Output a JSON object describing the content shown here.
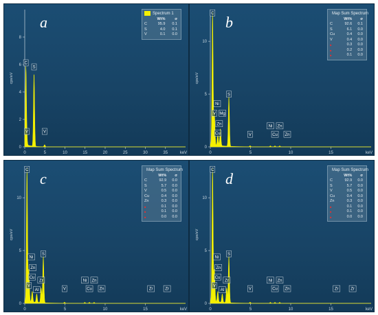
{
  "chart_data": [
    {
      "type": "line",
      "panel_label": "a",
      "legend_title": "Spectrum 1",
      "columns": [
        "Wt%",
        "σ"
      ],
      "rows": [
        {
          "el": "C",
          "wt": "95.9",
          "sigma": "0.1",
          "red": false
        },
        {
          "el": "S",
          "wt": "4.0",
          "sigma": "0.1",
          "red": false
        },
        {
          "el": "V",
          "wt": "0.1",
          "sigma": "0.0",
          "red": false
        }
      ],
      "ylabel": "cps/eV",
      "xlabel": "keV",
      "xlim": [
        0,
        40
      ],
      "ylim": [
        0,
        10
      ],
      "x_ticks": [
        0,
        5,
        10,
        15,
        20,
        25,
        30,
        35
      ],
      "y_ticks": [
        0,
        2,
        4,
        6,
        8
      ],
      "peaks": [
        {
          "x": 0.28,
          "y": 5.6
        },
        {
          "x": 0.51,
          "y": 0.35
        },
        {
          "x": 2.31,
          "y": 5.3
        },
        {
          "x": 4.95,
          "y": 0.15
        }
      ],
      "markers": [
        {
          "label": "C",
          "x": 0.28,
          "y": 5.9
        },
        {
          "label": "S",
          "x": 2.31,
          "y": 5.6
        },
        {
          "label": "V",
          "x": 0.51,
          "y": 0.9
        },
        {
          "label": "V",
          "x": 4.95,
          "y": 0.9
        }
      ]
    },
    {
      "type": "line",
      "panel_label": "b",
      "legend_title": "Map Sum Spectrum",
      "columns": [
        "Wt%",
        "σ"
      ],
      "rows": [
        {
          "el": "C",
          "wt": "92.6",
          "sigma": "0.1",
          "red": false
        },
        {
          "el": "S",
          "wt": "6.1",
          "sigma": "0.0",
          "red": false
        },
        {
          "el": "Cu",
          "wt": "0.4",
          "sigma": "0.0",
          "red": false
        },
        {
          "el": "V",
          "wt": "0.4",
          "sigma": "0.0",
          "red": false
        },
        {
          "el": "",
          "wt": "0.3",
          "sigma": "0.0",
          "red": true
        },
        {
          "el": "",
          "wt": "0.2",
          "sigma": "0.0",
          "red": true
        },
        {
          "el": "",
          "wt": "0.1",
          "sigma": "0.0",
          "red": true
        }
      ],
      "ylabel": "cps/eV",
      "xlabel": "keV",
      "xlim": [
        0,
        20
      ],
      "ylim": [
        0,
        13
      ],
      "x_ticks": [
        0,
        5,
        10,
        15
      ],
      "y_ticks": [
        0,
        5,
        10
      ],
      "peaks": [
        {
          "x": 0.28,
          "y": 12.6
        },
        {
          "x": 0.51,
          "y": 3.0
        },
        {
          "x": 0.93,
          "y": 1.0
        },
        {
          "x": 1.25,
          "y": 1.6
        },
        {
          "x": 2.31,
          "y": 4.7
        },
        {
          "x": 4.95,
          "y": 0.1
        },
        {
          "x": 7.47,
          "y": 0.1
        },
        {
          "x": 8.04,
          "y": 0.1
        },
        {
          "x": 8.63,
          "y": 0.1
        }
      ],
      "markers": [
        {
          "label": "C",
          "x": 0.28,
          "y": 12.4
        },
        {
          "label": "Ni",
          "x": 0.85,
          "y": 3.8
        },
        {
          "label": "Mg",
          "x": 1.5,
          "y": 2.9
        },
        {
          "label": "Zn",
          "x": 1.1,
          "y": 1.9
        },
        {
          "label": "Cu",
          "x": 0.93,
          "y": 1.0
        },
        {
          "label": "V",
          "x": 0.51,
          "y": 2.9
        },
        {
          "label": "S",
          "x": 2.31,
          "y": 4.7
        },
        {
          "label": "V",
          "x": 4.95,
          "y": 0.9
        },
        {
          "label": "Ni",
          "x": 7.47,
          "y": 1.7
        },
        {
          "label": "Zn",
          "x": 8.63,
          "y": 1.7
        },
        {
          "label": "Cu",
          "x": 8.04,
          "y": 0.9
        },
        {
          "label": "Zn",
          "x": 9.57,
          "y": 0.9
        }
      ]
    },
    {
      "type": "line",
      "panel_label": "c",
      "legend_title": "Map Sum Spectrum",
      "columns": [
        "Wt%",
        "σ"
      ],
      "rows": [
        {
          "el": "C",
          "wt": "92.9",
          "sigma": "0.0",
          "red": false
        },
        {
          "el": "S",
          "wt": "5.7",
          "sigma": "0.0",
          "red": false
        },
        {
          "el": "V",
          "wt": "0.5",
          "sigma": "0.0",
          "red": false
        },
        {
          "el": "Cu",
          "wt": "0.4",
          "sigma": "0.0",
          "red": false
        },
        {
          "el": "Zn",
          "wt": "0.3",
          "sigma": "0.0",
          "red": false
        },
        {
          "el": "",
          "wt": "0.1",
          "sigma": "0.0",
          "red": true
        },
        {
          "el": "",
          "wt": "0.1",
          "sigma": "0.0",
          "red": true
        },
        {
          "el": "",
          "wt": "0.0",
          "sigma": "0.0",
          "red": true
        }
      ],
      "ylabel": "cps/eV",
      "xlabel": "keV",
      "xlim": [
        0,
        20
      ],
      "ylim": [
        0,
        13
      ],
      "x_ticks": [
        0,
        5,
        10,
        15
      ],
      "y_ticks": [
        0,
        5,
        10
      ],
      "peaks": [
        {
          "x": 0.28,
          "y": 12.6
        },
        {
          "x": 0.51,
          "y": 3.0
        },
        {
          "x": 0.93,
          "y": 1.0
        },
        {
          "x": 1.49,
          "y": 0.8
        },
        {
          "x": 2.04,
          "y": 1.4
        },
        {
          "x": 2.31,
          "y": 4.4
        },
        {
          "x": 4.95,
          "y": 0.1
        },
        {
          "x": 7.47,
          "y": 0.1
        },
        {
          "x": 8.04,
          "y": 0.1
        },
        {
          "x": 8.63,
          "y": 0.1
        }
      ],
      "markers": [
        {
          "label": "C",
          "x": 0.28,
          "y": 12.4
        },
        {
          "label": "Ni",
          "x": 0.8,
          "y": 4.1
        },
        {
          "label": "Zn",
          "x": 1.0,
          "y": 3.1
        },
        {
          "label": "Cu",
          "x": 0.9,
          "y": 2.2
        },
        {
          "label": "V",
          "x": 0.51,
          "y": 1.4
        },
        {
          "label": "Al",
          "x": 1.49,
          "y": 1.0
        },
        {
          "label": "Zr",
          "x": 2.04,
          "y": 1.9
        },
        {
          "label": "S",
          "x": 2.31,
          "y": 4.4
        },
        {
          "label": "V",
          "x": 4.95,
          "y": 1.1
        },
        {
          "label": "Ni",
          "x": 7.47,
          "y": 1.9
        },
        {
          "label": "Zn",
          "x": 8.63,
          "y": 1.9
        },
        {
          "label": "Cu",
          "x": 8.04,
          "y": 1.1
        },
        {
          "label": "Zn",
          "x": 9.57,
          "y": 1.1
        },
        {
          "label": "Zr",
          "x": 15.7,
          "y": 1.1
        },
        {
          "label": "Zr",
          "x": 17.7,
          "y": 1.1
        }
      ]
    },
    {
      "type": "line",
      "panel_label": "d",
      "legend_title": "Map Sum Spectrum",
      "columns": [
        "Wt%",
        "σ"
      ],
      "rows": [
        {
          "el": "C",
          "wt": "92.9",
          "sigma": "0.0",
          "red": false
        },
        {
          "el": "S",
          "wt": "5.7",
          "sigma": "0.0",
          "red": false
        },
        {
          "el": "V",
          "wt": "0.5",
          "sigma": "0.0",
          "red": false
        },
        {
          "el": "Cu",
          "wt": "0.4",
          "sigma": "0.0",
          "red": false
        },
        {
          "el": "Zn",
          "wt": "0.3",
          "sigma": "0.0",
          "red": false
        },
        {
          "el": "",
          "wt": "0.1",
          "sigma": "0.0",
          "red": true
        },
        {
          "el": "",
          "wt": "0.1",
          "sigma": "0.0",
          "red": true
        },
        {
          "el": "",
          "wt": "0.0",
          "sigma": "0.0",
          "red": true
        }
      ],
      "ylabel": "cps/eV",
      "xlabel": "keV",
      "xlim": [
        0,
        20
      ],
      "ylim": [
        0,
        13
      ],
      "x_ticks": [
        0,
        5,
        10,
        15
      ],
      "y_ticks": [
        0,
        5,
        10
      ],
      "peaks": [
        {
          "x": 0.28,
          "y": 12.6
        },
        {
          "x": 0.51,
          "y": 3.0
        },
        {
          "x": 0.93,
          "y": 1.0
        },
        {
          "x": 1.49,
          "y": 0.8
        },
        {
          "x": 2.04,
          "y": 1.4
        },
        {
          "x": 2.31,
          "y": 4.4
        },
        {
          "x": 4.95,
          "y": 0.1
        },
        {
          "x": 7.47,
          "y": 0.1
        },
        {
          "x": 8.04,
          "y": 0.1
        },
        {
          "x": 8.63,
          "y": 0.1
        }
      ],
      "markers": [
        {
          "label": "C",
          "x": 0.28,
          "y": 12.4
        },
        {
          "label": "Ni",
          "x": 0.8,
          "y": 4.1
        },
        {
          "label": "Zn",
          "x": 1.0,
          "y": 3.1
        },
        {
          "label": "Cu",
          "x": 0.9,
          "y": 2.2
        },
        {
          "label": "V",
          "x": 0.51,
          "y": 1.4
        },
        {
          "label": "Al",
          "x": 1.49,
          "y": 1.0
        },
        {
          "label": "Zr",
          "x": 2.04,
          "y": 1.9
        },
        {
          "label": "S",
          "x": 2.31,
          "y": 4.4
        },
        {
          "label": "V",
          "x": 4.95,
          "y": 1.1
        },
        {
          "label": "Ni",
          "x": 7.47,
          "y": 1.9
        },
        {
          "label": "Zn",
          "x": 8.63,
          "y": 1.9
        },
        {
          "label": "Cu",
          "x": 8.04,
          "y": 1.1
        },
        {
          "label": "Zn",
          "x": 9.57,
          "y": 1.1
        },
        {
          "label": "Zr",
          "x": 15.7,
          "y": 1.1
        },
        {
          "label": "Zr",
          "x": 17.7,
          "y": 1.1
        }
      ]
    }
  ],
  "colors": {
    "spectrum": "#f4f000",
    "axis": "#c9d6df",
    "marker_border": "#d8e2e8",
    "marker_text": "#ffffff",
    "red_element": "#e63030"
  }
}
